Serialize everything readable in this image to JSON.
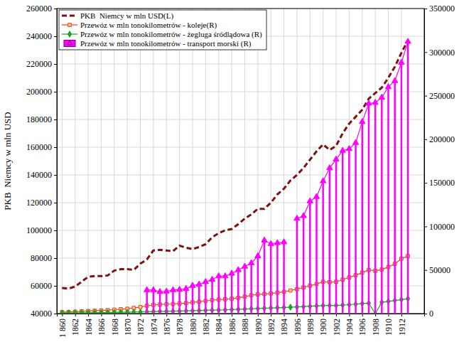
{
  "chart_data": {
    "type": "line",
    "y_label": "PKB  Niemcy w mln USD",
    "x": [
      1860,
      1861,
      1862,
      1863,
      1864,
      1865,
      1866,
      1867,
      1868,
      1869,
      1870,
      1871,
      1872,
      1873,
      1874,
      1875,
      1876,
      1877,
      1878,
      1879,
      1880,
      1881,
      1882,
      1883,
      1884,
      1885,
      1886,
      1887,
      1888,
      1889,
      1890,
      1891,
      1892,
      1893,
      1894,
      1895,
      1896,
      1897,
      1898,
      1899,
      1900,
      1901,
      1902,
      1903,
      1904,
      1905,
      1906,
      1907,
      1908,
      1909,
      1910,
      1911,
      1912,
      1913
    ],
    "xlim": [
      1859.2,
      1915.5
    ],
    "xticks": [
      {
        "value": 1860,
        "label": "1 860"
      },
      1862,
      1864,
      1866,
      1868,
      1870,
      1872,
      1874,
      1876,
      1878,
      1880,
      1882,
      1884,
      1886,
      1888,
      1890,
      1892,
      1894,
      1896,
      1898,
      1900,
      1902,
      1904,
      1906,
      1908,
      1910,
      1912
    ],
    "ylim": [
      40000,
      260000
    ],
    "yticks": [
      40000,
      60000,
      80000,
      100000,
      120000,
      140000,
      160000,
      180000,
      200000,
      220000,
      240000,
      260000
    ],
    "y2lim": [
      0,
      350000
    ],
    "y2ticks": [
      0,
      50000,
      100000,
      150000,
      200000,
      250000,
      300000,
      350000
    ],
    "grid": true,
    "legend": "top-left",
    "series": [
      {
        "name": "PKB  Niemcy w mln USD(L)",
        "type": "line",
        "axis": "y",
        "color": "#7f1111",
        "line_style": "dashed",
        "marker": "none",
        "values": [
          58500,
          58000,
          59500,
          63000,
          66500,
          67000,
          67000,
          67500,
          71000,
          72000,
          72000,
          71500,
          76000,
          79000,
          85500,
          86000,
          85500,
          85000,
          89000,
          87500,
          86500,
          88000,
          90000,
          95000,
          98000,
          100000,
          101000,
          104500,
          108500,
          111500,
          115500,
          115500,
          120000,
          126000,
          130000,
          136000,
          140000,
          145000,
          151000,
          157000,
          162000,
          158000,
          161000,
          170000,
          177000,
          182000,
          187000,
          195000,
          199000,
          203000,
          210000,
          218000,
          228000,
          237000
        ]
      },
      {
        "name": "Przewóz w mln tonokilometrów - koleje(R)",
        "type": "line",
        "axis": "y2",
        "color": "#e0461a",
        "line_style": "solid",
        "marker": "square",
        "values": [
          1700,
          1900,
          2200,
          2600,
          3000,
          3300,
          3600,
          4000,
          4500,
          5000,
          5500,
          6500,
          7500,
          9000,
          10000,
          10500,
          10800,
          11000,
          11500,
          12000,
          13000,
          13500,
          14500,
          15500,
          16000,
          16500,
          17000,
          18000,
          19500,
          21000,
          22000,
          22500,
          23000,
          24000,
          25000,
          26500,
          28000,
          30000,
          32000,
          34000,
          36500,
          36000,
          36500,
          39000,
          41500,
          44000,
          47000,
          50000,
          49000,
          50500,
          53500,
          57000,
          63000,
          66000
        ]
      },
      {
        "name": "Przewóz w mln tonokilometrów - żegluga śródlądowa (R)",
        "type": "line",
        "axis": "y2",
        "color": "#1e9e1e",
        "line_style": "solid",
        "marker": "diamond",
        "values": [
          700,
          750,
          800,
          900,
          1000,
          1100,
          1200,
          1300,
          1400,
          1500,
          1600,
          1700,
          1900,
          2100,
          2300,
          2500,
          2600,
          2700,
          2900,
          3100,
          3300,
          3500,
          3700,
          3900,
          4100,
          4300,
          4600,
          4900,
          5200,
          5500,
          5800,
          6100,
          6400,
          6700,
          7000,
          7300,
          7600,
          8000,
          8400,
          8800,
          9200,
          9400,
          9300,
          9800,
          10200,
          10800,
          11500,
          12000,
          0,
          13000,
          14000,
          15000,
          16000,
          17000
        ]
      },
      {
        "name": "Przewóz w mln tonokilometrów - transport morski (R)",
        "type": "bar",
        "axis": "y2",
        "color": "#ff00ff",
        "line_style": "solid",
        "marker": "triangle",
        "values": [
          null,
          null,
          null,
          null,
          null,
          null,
          null,
          null,
          null,
          null,
          null,
          null,
          null,
          27000,
          27000,
          25000,
          25500,
          27000,
          27500,
          28500,
          32000,
          33500,
          36500,
          39000,
          43000,
          43000,
          46000,
          50000,
          54000,
          58000,
          66000,
          84000,
          80000,
          81000,
          82000,
          null,
          109000,
          112000,
          129000,
          134000,
          152000,
          167000,
          177000,
          187000,
          189000,
          196000,
          220000,
          241000,
          242000,
          248000,
          260000,
          267000,
          288000,
          312000
        ]
      }
    ]
  }
}
